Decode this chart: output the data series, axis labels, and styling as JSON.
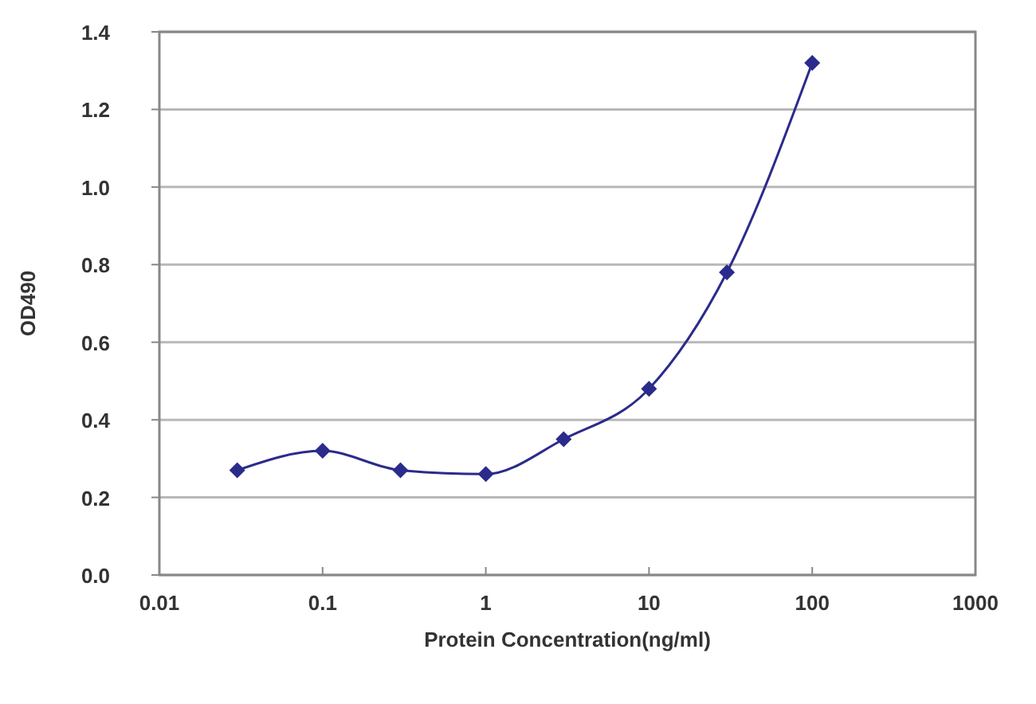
{
  "chart_data": {
    "type": "line",
    "xlabel": "Protein Concentration(ng/ml)",
    "ylabel": "OD490",
    "x": [
      0.03,
      0.1,
      0.3,
      1,
      3,
      10,
      30,
      100
    ],
    "series": [
      {
        "color": "#2b2b8c",
        "values": [
          0.27,
          0.32,
          0.27,
          0.26,
          0.35,
          0.48,
          0.78,
          1.32
        ]
      }
    ],
    "log": "x",
    "xlim": [
      0.01,
      1000
    ],
    "xticks": [
      0.01,
      0.1,
      1,
      10,
      100,
      1000
    ],
    "ylim": [
      0,
      1.4
    ],
    "yticks": [
      {
        "value": 0,
        "label": "0.0"
      },
      0.2,
      0.4,
      0.6,
      0.8,
      {
        "value": 1,
        "label": "1.0"
      },
      1.2,
      1.4
    ],
    "grid": "y",
    "marker": "diamond",
    "line_style": "solid"
  }
}
